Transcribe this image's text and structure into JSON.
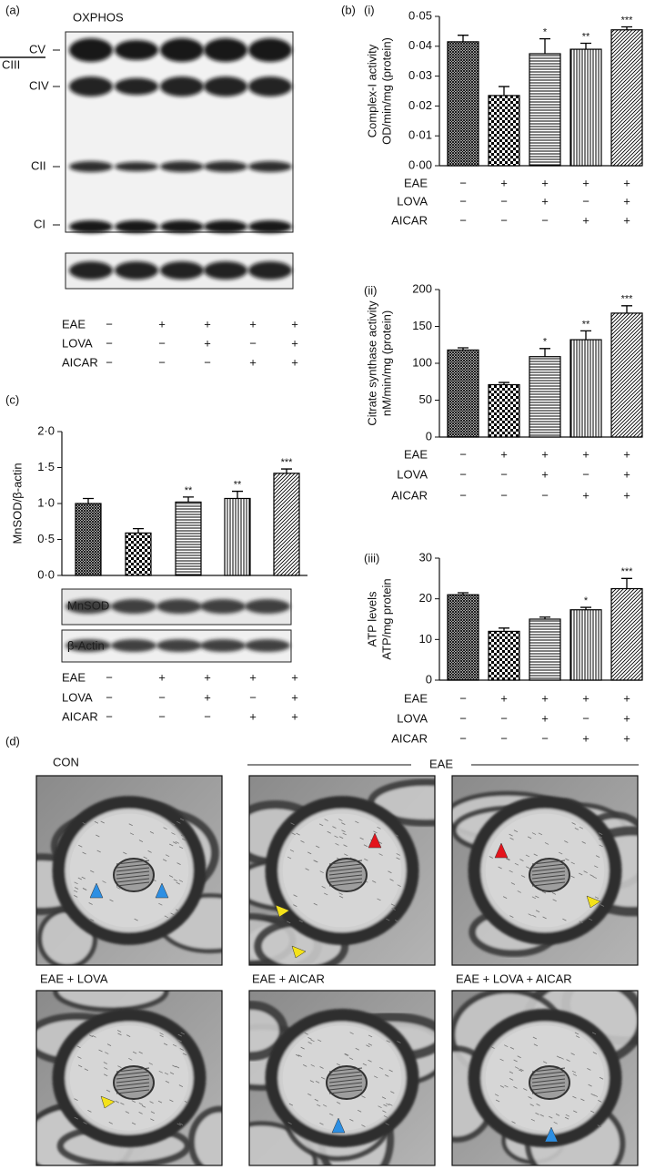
{
  "panel_labels": [
    "(a)",
    "(b)",
    "(c)",
    "(d)"
  ],
  "blot": {
    "title": "OXPHOS",
    "bands": [
      "CV",
      "CIII",
      "CIV",
      "CII",
      "CI"
    ]
  },
  "conditions": {
    "rows": [
      "EAE",
      "LOVA",
      "AICAR"
    ],
    "signs": [
      [
        "−",
        "+",
        "+",
        "+",
        "+"
      ],
      [
        "−",
        "−",
        "+",
        "−",
        "+"
      ],
      [
        "−",
        "−",
        "−",
        "+",
        "+"
      ]
    ]
  },
  "chart_data": [
    {
      "type": "bar",
      "panel": "(i)",
      "ylabel": [
        "Complex-I activity",
        "OD/min/mg (protein)"
      ],
      "categories": [
        null,
        null,
        null,
        null,
        null
      ],
      "values": [
        0.0415,
        0.0235,
        0.0375,
        0.039,
        0.0455
      ],
      "errors": [
        0.0022,
        0.003,
        0.005,
        0.002,
        0.001
      ],
      "annotations": [
        null,
        null,
        "*",
        "**",
        "***"
      ],
      "color": "#000000",
      "ylim": [
        0,
        0.05
      ],
      "yticks": [
        {
          "value": 0,
          "label": "0·00"
        },
        {
          "value": 0.01,
          "label": "0·01"
        },
        {
          "value": 0.02,
          "label": "0·02"
        },
        {
          "value": 0.03,
          "label": "0·03"
        },
        {
          "value": 0.04,
          "label": "0·04"
        },
        {
          "value": 0.05,
          "label": "0·05"
        }
      ]
    },
    {
      "type": "bar",
      "panel": "(ii)",
      "ylabel": [
        "Citrate synthase activity",
        "nM/min/mg (protein)"
      ],
      "categories": [
        null,
        null,
        null,
        null,
        null
      ],
      "values": [
        118,
        71,
        109,
        132,
        168
      ],
      "errors": [
        3,
        3,
        11,
        12,
        10
      ],
      "annotations": [
        null,
        null,
        "*",
        "**",
        "***"
      ],
      "color": "#000000",
      "ylim": [
        0,
        200
      ],
      "yticks": [
        0,
        50,
        100,
        150,
        200
      ]
    },
    {
      "type": "bar",
      "panel": "(iii)",
      "ylabel": [
        "ATP levels",
        "ATP/mg protein"
      ],
      "categories": [
        null,
        null,
        null,
        null,
        null
      ],
      "values": [
        21,
        12,
        15,
        17.3,
        22.5
      ],
      "errors": [
        0.5,
        0.8,
        0.5,
        0.6,
        2.5
      ],
      "annotations": [
        null,
        null,
        null,
        "*",
        "***"
      ],
      "color": "#000000",
      "ylim": [
        0,
        30
      ],
      "yticks": [
        0,
        10,
        20,
        30
      ]
    },
    {
      "type": "bar",
      "ylabel": [
        "MnSOD/β-actin"
      ],
      "categories": [
        null,
        null,
        null,
        null,
        null
      ],
      "values": [
        1.0,
        0.59,
        1.02,
        1.07,
        1.42
      ],
      "errors": [
        0.07,
        0.06,
        0.07,
        0.1,
        0.06
      ],
      "annotations": [
        null,
        null,
        "**",
        "**",
        "***"
      ],
      "color": "#000000",
      "ylim": [
        0,
        2
      ],
      "yticks": [
        {
          "value": 0,
          "label": "0·0"
        },
        {
          "value": 0.5,
          "label": "0·5"
        },
        {
          "value": 1,
          "label": "1·0"
        },
        {
          "value": 1.5,
          "label": "1·5"
        },
        {
          "value": 2,
          "label": "2·0"
        }
      ]
    }
  ],
  "mnsod_blot": {
    "labels": [
      "MnSOD",
      "β-Actin"
    ]
  },
  "em": {
    "group_label": "EAE",
    "panels": [
      "CON",
      "EAE + LOVA",
      "EAE + AICAR",
      "EAE + LOVA + AICAR"
    ]
  }
}
